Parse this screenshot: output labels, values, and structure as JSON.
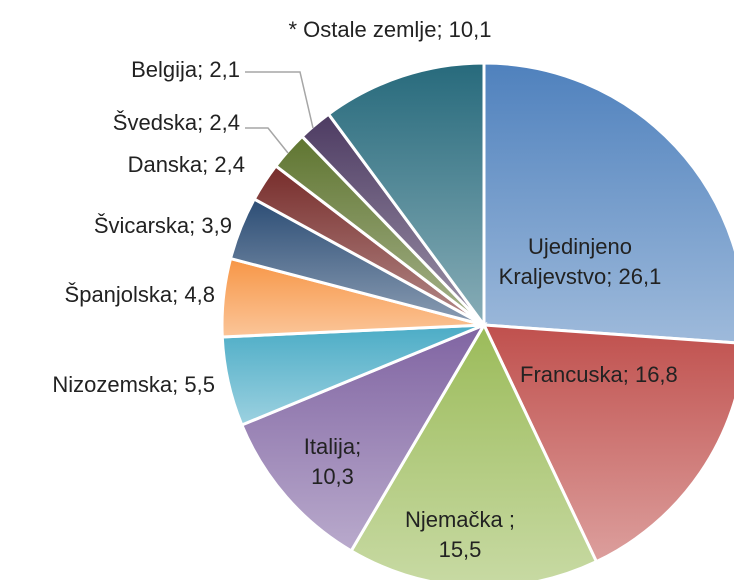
{
  "chart_data": {
    "type": "pie",
    "categories": [
      "Ujedinjeno Kraljevstvo",
      "Francuska",
      "Njemačka ",
      "Italija",
      "Nizozemska",
      "Španjolska",
      "Švicarska",
      "Danska",
      "Švedska",
      "Belgija",
      "* Ostale zemlje"
    ],
    "values": [
      26.1,
      16.8,
      15.5,
      10.3,
      5.5,
      4.8,
      3.9,
      2.4,
      2.4,
      2.1,
      10.1
    ],
    "value_labels": [
      "26,1",
      "16,8",
      "15,5",
      "10,3",
      "5,5",
      "4,8",
      "3,9",
      "2,4",
      "2,4",
      "2,1",
      "10,1"
    ],
    "label_separator": "; ",
    "colors": [
      "#4f81bd",
      "#c0504d",
      "#9bbb59",
      "#8064a2",
      "#4bacc6",
      "#f79646",
      "#2c4d75",
      "#772c2a",
      "#5f7530",
      "#4d3b62",
      "#276a7c"
    ]
  }
}
